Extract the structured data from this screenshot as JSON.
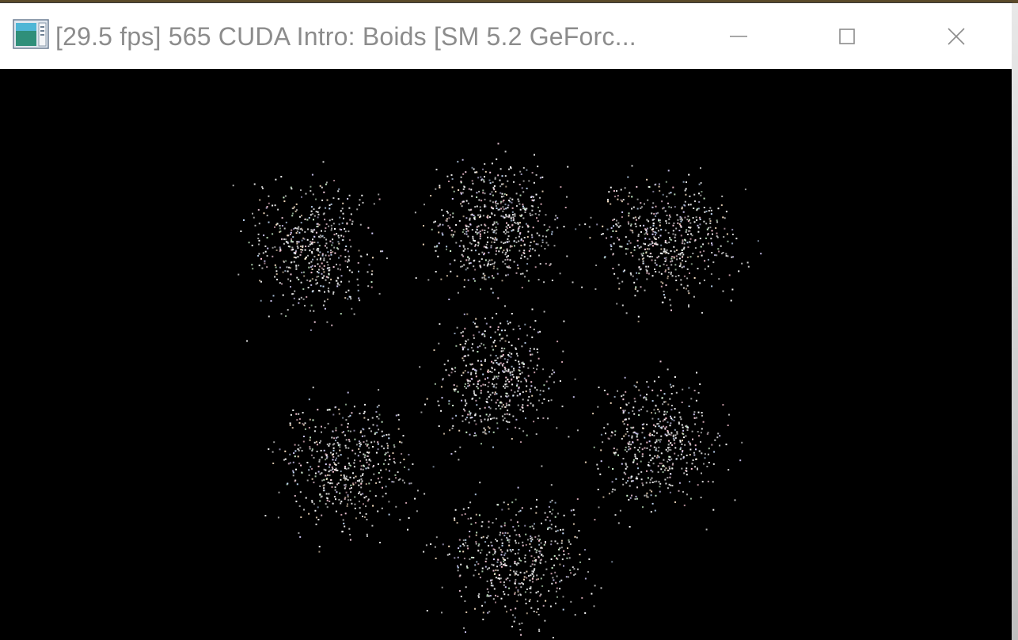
{
  "window": {
    "title": "[29.5 fps] 565 CUDA Intro: Boids [SM 5.2 GeForc...",
    "icon": "application-window-icon",
    "controls": {
      "minimize_icon": "minimize-icon",
      "maximize_icon": "maximize-icon",
      "close_icon": "close-icon"
    }
  },
  "viewport": {
    "background": "#000000",
    "particle_colors": [
      "#ffffff",
      "#ffd6e8",
      "#d8d0ff",
      "#d6ffd6",
      "#ffe6c8",
      "#c8e0ff",
      "#ffc8d8"
    ]
  }
}
